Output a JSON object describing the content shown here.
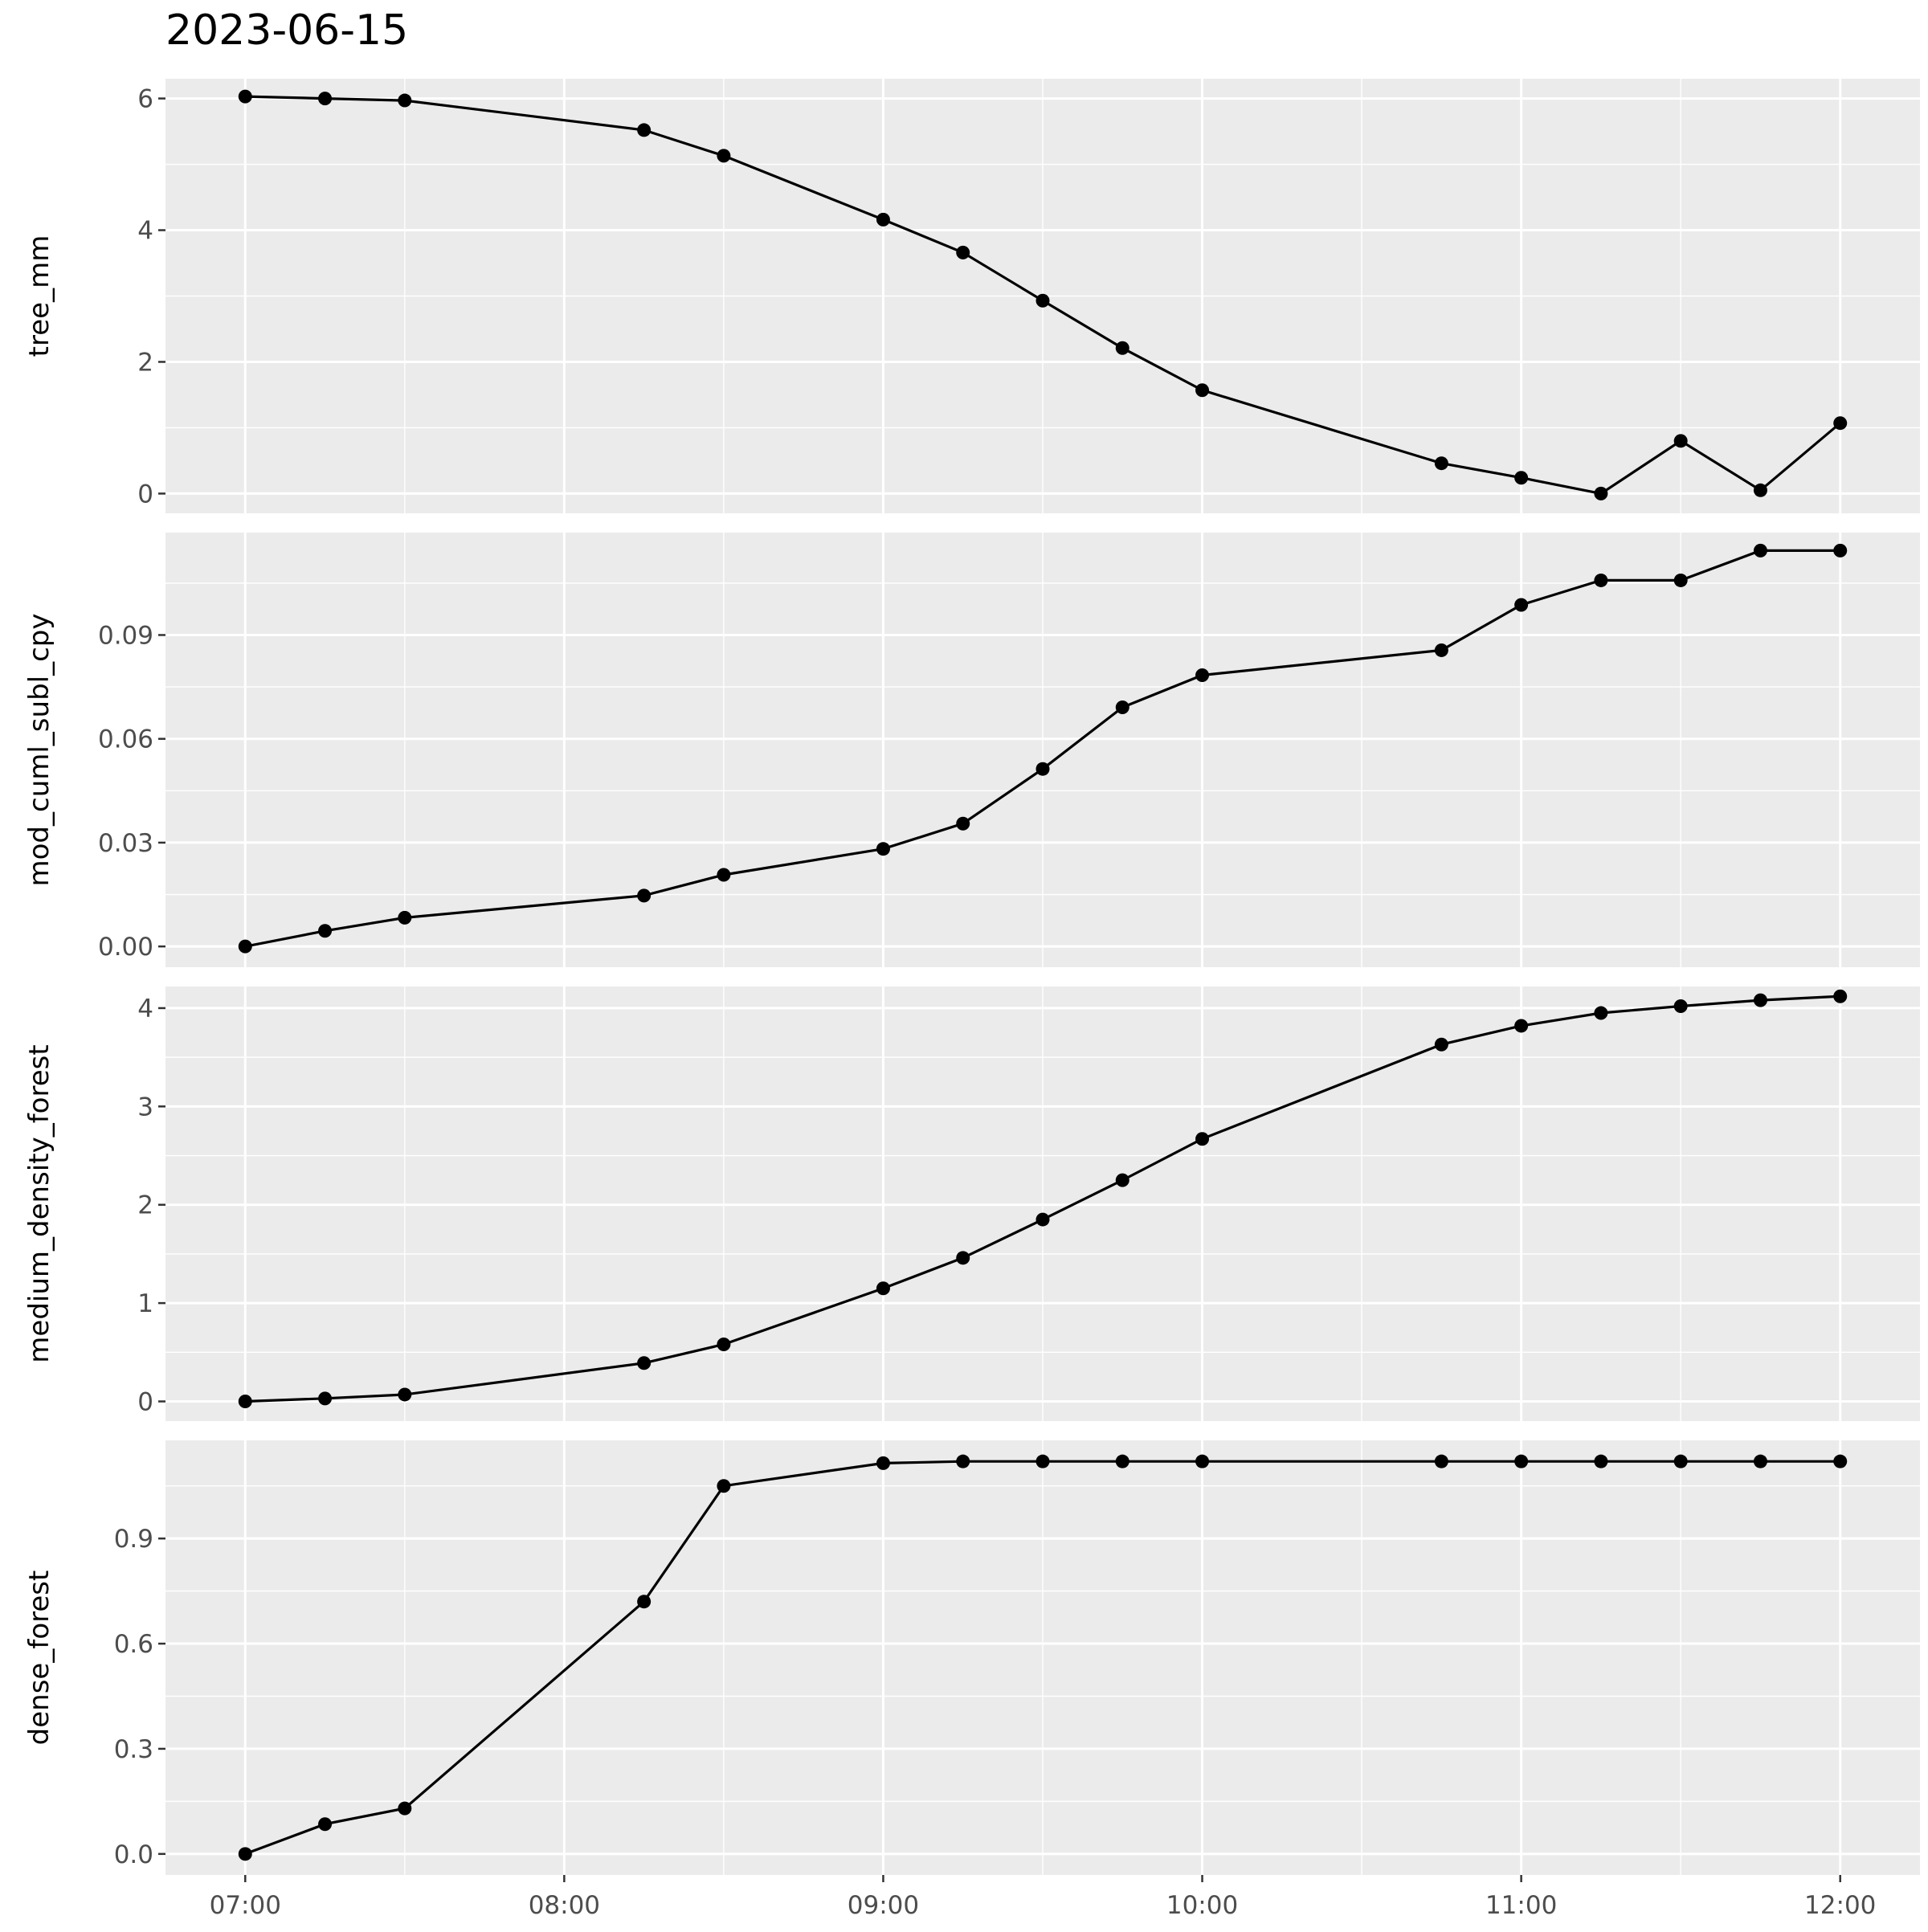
{
  "chart_data": {
    "type": "line",
    "title": "2023-06-15",
    "x": [
      "07:00",
      "07:15",
      "07:30",
      "08:15",
      "08:30",
      "09:00",
      "09:15",
      "09:30",
      "09:45",
      "10:00",
      "10:45",
      "11:00",
      "11:15",
      "11:30",
      "11:45",
      "12:00"
    ],
    "x_ticks": [
      "07:00",
      "08:00",
      "09:00",
      "10:00",
      "11:00",
      "12:00"
    ],
    "xlim": [
      "06:45",
      "12:15"
    ],
    "grid": true,
    "facets": [
      {
        "ylabel": "tree_mm",
        "ylim": [
          -0.3,
          6.3
        ],
        "y_ticks": [
          "0",
          "2",
          "4",
          "6"
        ],
        "y_tick_values": [
          0,
          2,
          4,
          6
        ],
        "values": [
          6.03,
          6.0,
          5.97,
          5.52,
          5.13,
          4.16,
          3.66,
          2.93,
          2.21,
          1.57,
          0.46,
          0.24,
          0.0,
          0.8,
          0.05,
          1.07
        ]
      },
      {
        "ylabel": "mod_cuml_subl_cpy",
        "ylim": [
          -0.006,
          0.1196
        ],
        "y_ticks": [
          "0.00",
          "0.03",
          "0.06",
          "0.09"
        ],
        "y_tick_values": [
          0,
          0.03,
          0.06,
          0.09
        ],
        "values": [
          0.0,
          0.0045,
          0.0083,
          0.0147,
          0.0207,
          0.0282,
          0.0355,
          0.0513,
          0.0691,
          0.0784,
          0.0856,
          0.0987,
          0.1058,
          0.1058,
          0.1144,
          0.1144
        ]
      },
      {
        "ylabel": "medium_density_forest",
        "ylim": [
          -0.2,
          4.22
        ],
        "y_ticks": [
          "0",
          "1",
          "2",
          "3",
          "4"
        ],
        "y_tick_values": [
          0,
          1,
          2,
          3,
          4
        ],
        "values": [
          0.0,
          0.03,
          0.07,
          0.39,
          0.58,
          1.15,
          1.46,
          1.85,
          2.25,
          2.67,
          3.63,
          3.82,
          3.95,
          4.02,
          4.08,
          4.12
        ]
      },
      {
        "ylabel": "dense_forest",
        "ylim": [
          -0.06,
          1.18
        ],
        "y_ticks": [
          "0.0",
          "0.3",
          "0.6",
          "0.9"
        ],
        "y_tick_values": [
          0,
          0.3,
          0.6,
          0.9
        ],
        "values": [
          0.0,
          0.085,
          0.13,
          0.72,
          1.05,
          1.115,
          1.12,
          1.12,
          1.12,
          1.12,
          1.12,
          1.12,
          1.12,
          1.12,
          1.12,
          1.12
        ]
      }
    ],
    "colors": {
      "panel_bg": "#ebebeb",
      "grid": "#ffffff",
      "line": "#000000",
      "point": "#000000"
    }
  }
}
